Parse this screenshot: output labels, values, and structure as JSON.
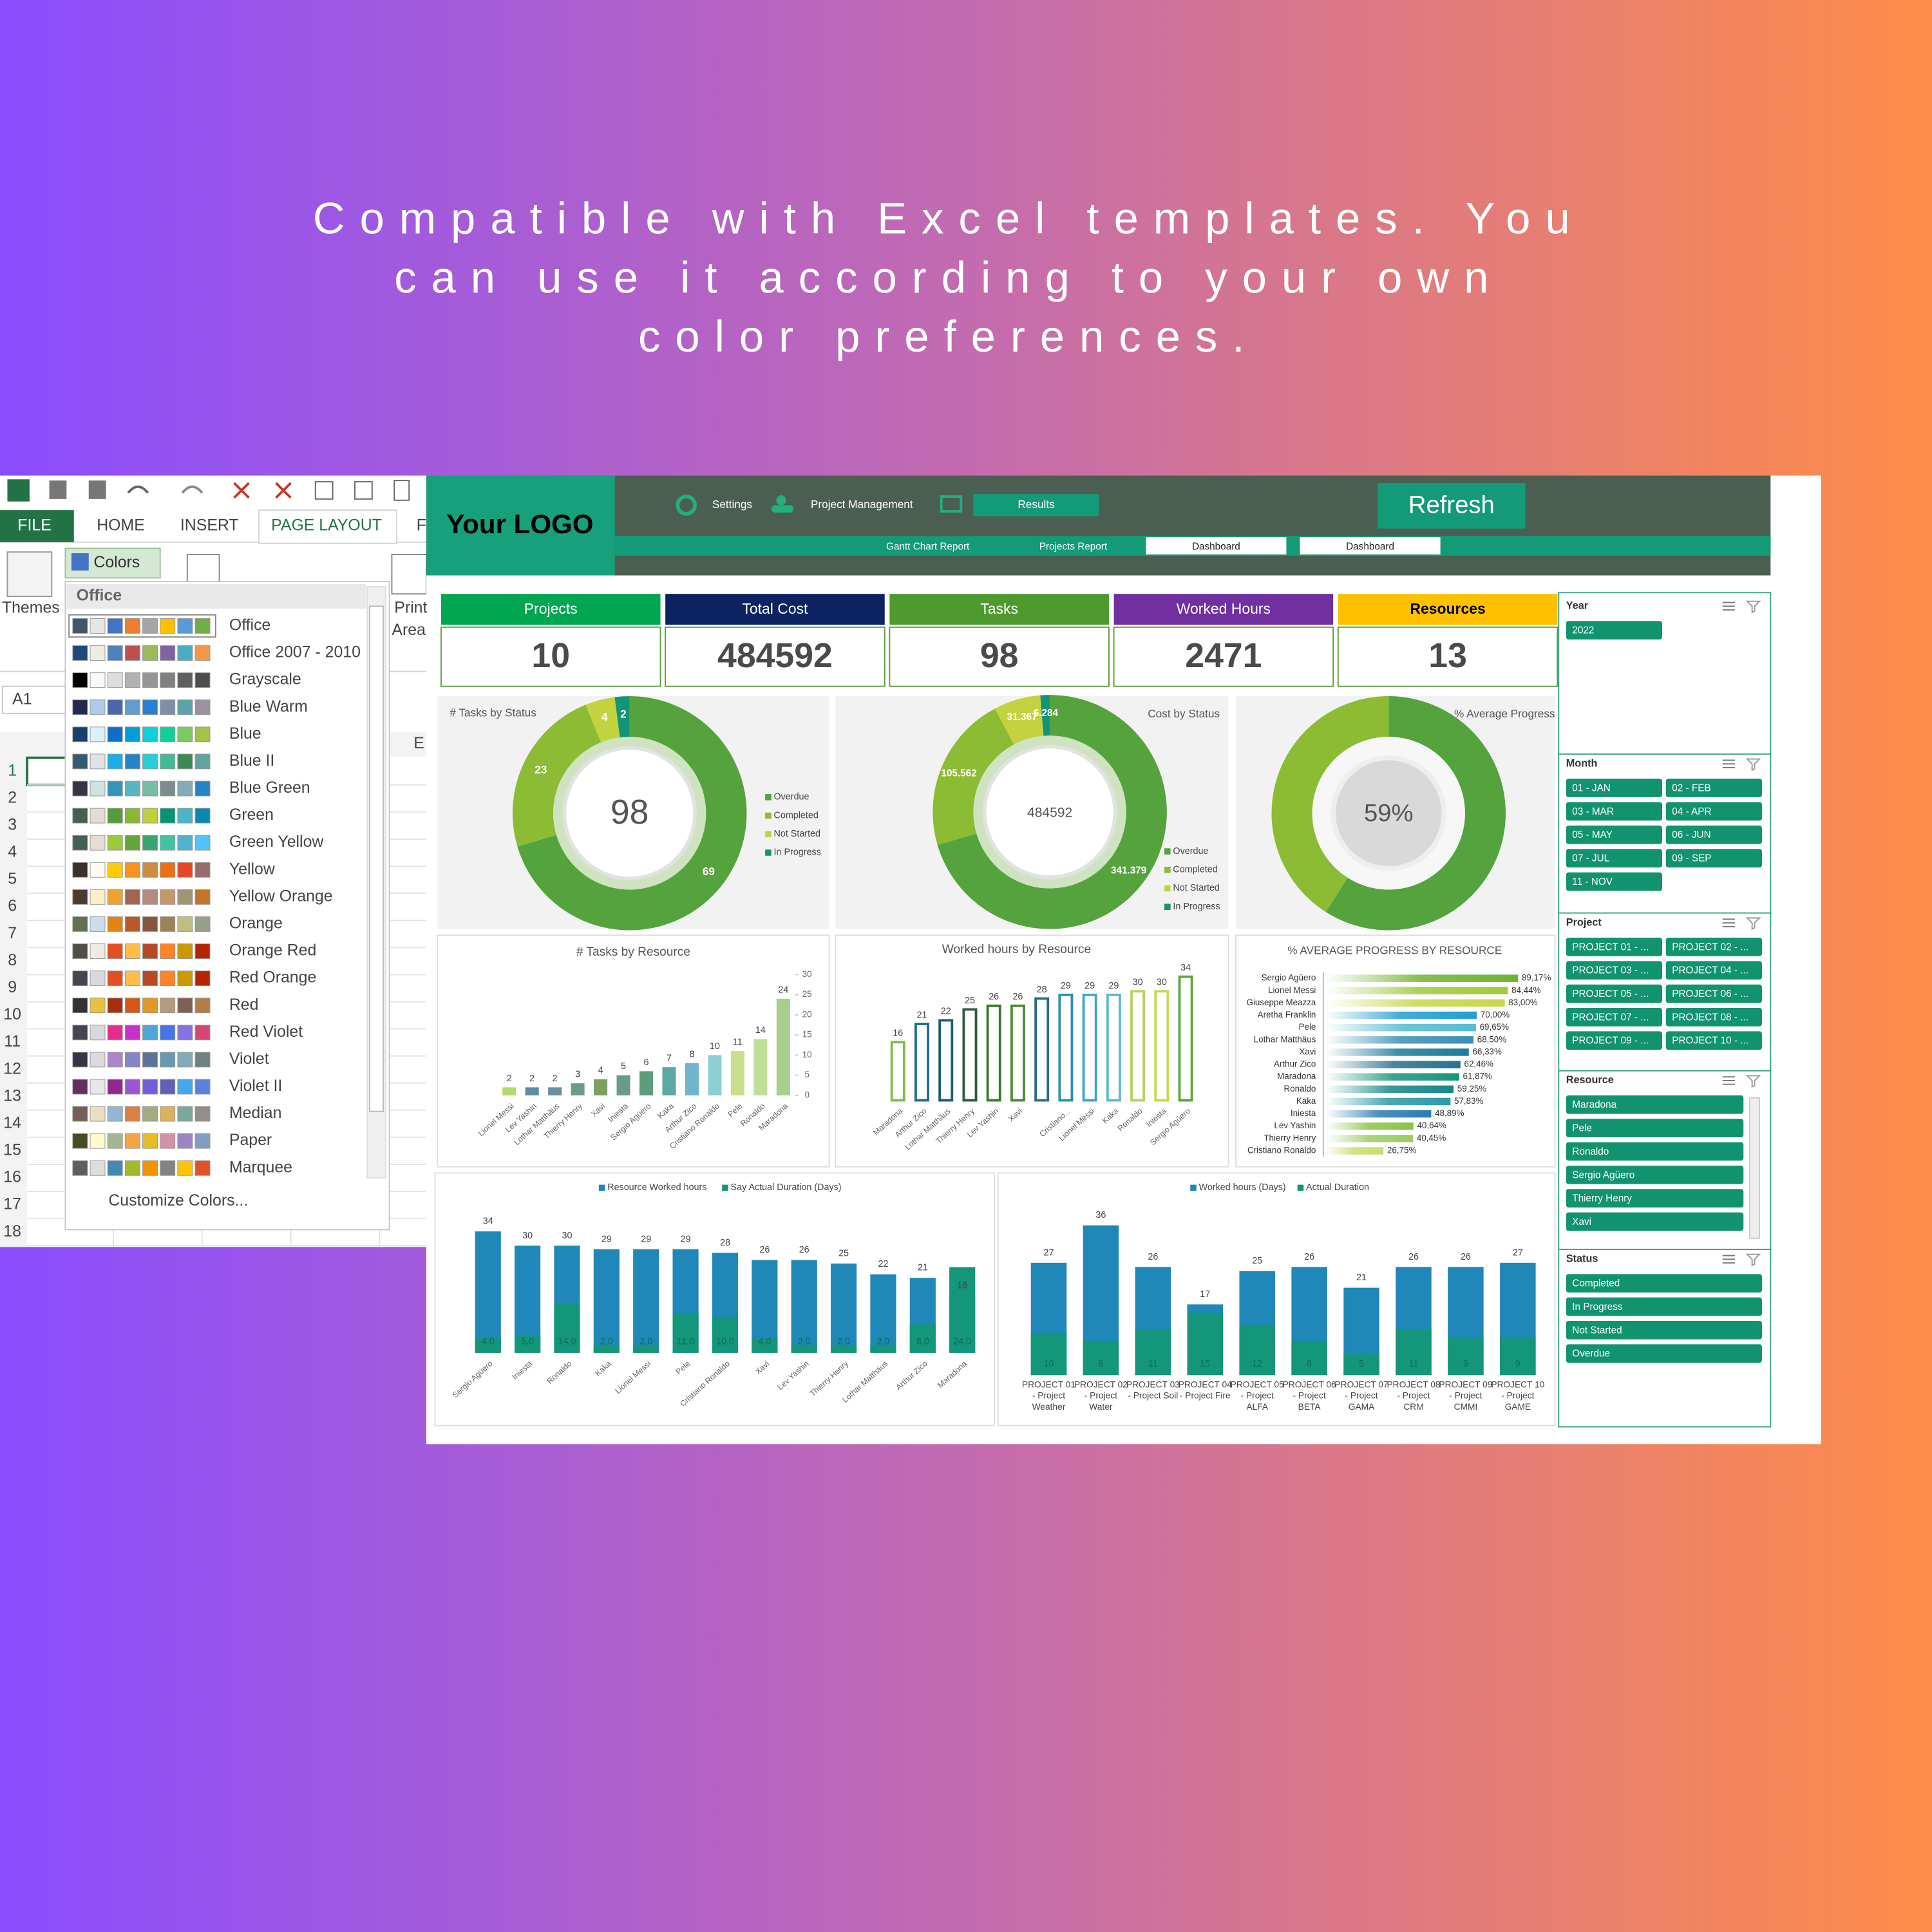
{
  "headline": {
    "lines": [
      "Compatible with Excel templates. You",
      "can use it according to your own",
      "color preferences."
    ]
  },
  "excel": {
    "tabs": [
      "FILE",
      "HOME",
      "INSERT",
      "PAGE LAYOUT",
      "F"
    ],
    "ribbon": {
      "themes": "Themes",
      "colors": "Colors",
      "print": "Print",
      "area": "Area"
    },
    "name_box": "A1",
    "column": "E",
    "rows": [
      1,
      2,
      3,
      4,
      5,
      6,
      7,
      8,
      9,
      10,
      11,
      12,
      13,
      14,
      15,
      16,
      17,
      18
    ],
    "menu": {
      "header": "Office",
      "customize": "Customize Colors...",
      "items": [
        {
          "name": "Office",
          "colors": [
            "#44546a",
            "#e7e6e6",
            "#4472c4",
            "#ed7d31",
            "#a5a5a5",
            "#ffc000",
            "#5b9bd5",
            "#70ad47"
          ]
        },
        {
          "name": "Office 2007 - 2010",
          "colors": [
            "#1f497d",
            "#eeece1",
            "#4f81bd",
            "#c0504d",
            "#9bbb59",
            "#8064a2",
            "#4bacc6",
            "#f79646"
          ]
        },
        {
          "name": "Grayscale",
          "colors": [
            "#000000",
            "#f8f8f8",
            "#dddddd",
            "#b2b2b2",
            "#969696",
            "#808080",
            "#5f5f5f",
            "#4d4d4d"
          ]
        },
        {
          "name": "Blue Warm",
          "colors": [
            "#242852",
            "#acccea",
            "#4a66ac",
            "#629dd1",
            "#297fd5",
            "#7f8fa9",
            "#5aa2ae",
            "#9d90a0"
          ]
        },
        {
          "name": "Blue",
          "colors": [
            "#17406d",
            "#dbefff",
            "#0f6fc6",
            "#009dd9",
            "#0bd0d9",
            "#10cf9b",
            "#7cca62",
            "#a5c249"
          ]
        },
        {
          "name": "Blue II",
          "colors": [
            "#335b74",
            "#dfe3e5",
            "#1cade4",
            "#2683c6",
            "#27ced7",
            "#42ba97",
            "#3e8853",
            "#62a39f"
          ]
        },
        {
          "name": "Blue Green",
          "colors": [
            "#373545",
            "#cee3e2",
            "#3494ba",
            "#58b6c0",
            "#75bda7",
            "#7a8c8e",
            "#84acb6",
            "#2683c6"
          ]
        },
        {
          "name": "Green",
          "colors": [
            "#455f51",
            "#e3ded1",
            "#549e39",
            "#8ab833",
            "#c0cf3a",
            "#029676",
            "#4ab5c4",
            "#0989b1"
          ]
        },
        {
          "name": "Green Yellow",
          "colors": [
            "#455f51",
            "#e3ded1",
            "#99cb38",
            "#63a537",
            "#37a76f",
            "#44c1a3",
            "#4eb3cf",
            "#51c3f9"
          ]
        },
        {
          "name": "Yellow",
          "colors": [
            "#39302a",
            "#fffbf2",
            "#ffca08",
            "#f8931d",
            "#ce8d3e",
            "#ec7016",
            "#e64823",
            "#9c6a6a"
          ]
        },
        {
          "name": "Yellow Orange",
          "colors": [
            "#4e3b30",
            "#fbeec9",
            "#f0a22e",
            "#a5644e",
            "#b58b80",
            "#c3986d",
            "#a19574",
            "#c17529"
          ]
        },
        {
          "name": "Orange",
          "colors": [
            "#637052",
            "#ccddea",
            "#e48312",
            "#bd582c",
            "#865640",
            "#9b8357",
            "#c2bc80",
            "#94a088"
          ]
        },
        {
          "name": "Orange Red",
          "colors": [
            "#505046",
            "#eeece1",
            "#e84c22",
            "#ffbd47",
            "#b64926",
            "#ff8427",
            "#cc9900",
            "#b22600"
          ]
        },
        {
          "name": "Red Orange",
          "colors": [
            "#454551",
            "#d8d9dc",
            "#e84c22",
            "#ffbd47",
            "#b64926",
            "#ff8427",
            "#cc9900",
            "#b22600"
          ]
        },
        {
          "name": "Red",
          "colors": [
            "#323232",
            "#e5c243",
            "#a5300f",
            "#d55816",
            "#e19825",
            "#b19c7d",
            "#7f5f52",
            "#b27d49"
          ]
        },
        {
          "name": "Red Violet",
          "colors": [
            "#454551",
            "#d8d9dc",
            "#e32d91",
            "#c830cc",
            "#4ea6dc",
            "#4775e7",
            "#8971e1",
            "#d54773"
          ]
        },
        {
          "name": "Violet",
          "colors": [
            "#373545",
            "#dcd8dc",
            "#ad84c6",
            "#8784c7",
            "#5d739a",
            "#6997af",
            "#84acb6",
            "#6f8183"
          ]
        },
        {
          "name": "Violet II",
          "colors": [
            "#632e62",
            "#eae5eb",
            "#92278f",
            "#9b57d3",
            "#755dd9",
            "#665eb8",
            "#45a5ed",
            "#5982db"
          ]
        },
        {
          "name": "Median",
          "colors": [
            "#775f55",
            "#ebddc3",
            "#94b6d2",
            "#dd8047",
            "#a5ab81",
            "#d8b25c",
            "#7ba79d",
            "#968c8c"
          ]
        },
        {
          "name": "Paper",
          "colors": [
            "#444d26",
            "#fefac9",
            "#a5b592",
            "#f3a447",
            "#e7bc29",
            "#d092a7",
            "#9c85c0",
            "#809ec2"
          ]
        },
        {
          "name": "Marquee",
          "colors": [
            "#5e5e5e",
            "#ddddde",
            "#418ab3",
            "#a6b727",
            "#f69200",
            "#838383",
            "#fec306",
            "#df5327"
          ]
        }
      ]
    }
  },
  "dashboard": {
    "logo": "Your LOGO",
    "nav": [
      "Settings",
      "Project Management",
      "Results"
    ],
    "refresh": "Refresh",
    "subnav": [
      "Gantt Chart Report",
      "Projects Report",
      "Dashboard",
      "Dashboard"
    ],
    "kpis": [
      {
        "label": "Projects",
        "value": 10,
        "color": "#00a650",
        "label_color": "#ffffff"
      },
      {
        "label": "Total Cost",
        "value": 484592,
        "color": "#0d2260",
        "label_color": "#ffffff"
      },
      {
        "label": "Tasks",
        "value": 98,
        "color": "#4e9a2f",
        "label_color": "#ffffff"
      },
      {
        "label": "Worked Hours",
        "value": 2471,
        "color": "#7030a0",
        "label_color": "#ffffff"
      },
      {
        "label": "Resources",
        "value": 13,
        "color": "#ffc000",
        "label_color": "#000000"
      }
    ],
    "slicers": [
      {
        "title": "Year",
        "items": [
          "2022"
        ]
      },
      {
        "title": "Month",
        "items": [
          "01 - JAN",
          "02 - FEB",
          "03 - MAR",
          "04 - APR",
          "05 - MAY",
          "06 - JUN",
          "07 - JUL",
          "09 - SEP",
          "11 - NOV"
        ]
      },
      {
        "title": "Project",
        "items": [
          "PROJECT 01 - ...",
          "PROJECT 02 - ...",
          "PROJECT 03 - ...",
          "PROJECT 04 - ...",
          "PROJECT 05 - ...",
          "PROJECT 06 - ...",
          "PROJECT 07 - ...",
          "PROJECT 08 - ...",
          "PROJECT 09 - ...",
          "PROJECT 10 - ..."
        ]
      },
      {
        "title": "Resource",
        "items": [
          "Maradona",
          "Pele",
          "Ronaldo",
          "Sergio Agüero",
          "Thierry Henry",
          "Xavi"
        ]
      },
      {
        "title": "Status",
        "items": [
          "Completed",
          "In Progress",
          "Not Started",
          "Overdue"
        ]
      }
    ]
  },
  "chart_data": [
    {
      "type": "donut",
      "title": "# Tasks by Status",
      "categories": [
        "Overdue",
        "Completed",
        "Not Started",
        "In Progress"
      ],
      "values": [
        69,
        23,
        4,
        2
      ],
      "colors": [
        "#54a33c",
        "#8cbb34",
        "#c3d33f",
        "#119477"
      ],
      "center_value": 98
    },
    {
      "type": "donut",
      "title": "Cost by Status",
      "categories": [
        "Overdue",
        "Completed",
        "Not Started",
        "In Progress"
      ],
      "values": [
        341379,
        105562,
        31367,
        6284
      ],
      "value_labels": [
        "341.379",
        "105.562",
        "31.367",
        "6.284"
      ],
      "colors": [
        "#54a33c",
        "#8cbb34",
        "#c3d33f",
        "#119477"
      ],
      "center_value": 484592
    },
    {
      "type": "donut",
      "title": "% Average Progress",
      "values": [
        59,
        41
      ],
      "colors": [
        "#54a33c",
        "#8cbb34"
      ],
      "center_label": "59%"
    },
    {
      "type": "bar",
      "title": "# Tasks by Resource",
      "categories": [
        "Lionel Messi",
        "Lev Yashin",
        "Lothar Matthäus",
        "Thierry Henry",
        "Xavi",
        "Iniesta",
        "Sergio Agüero",
        "Kaka",
        "Arthur Zico",
        "Cristiano Ronaldo",
        "Pele",
        "Ronaldo",
        "Maradona"
      ],
      "values": [
        2,
        2,
        2,
        3,
        4,
        5,
        6,
        7,
        8,
        10,
        11,
        14,
        24
      ],
      "colors": [
        "#b7d86b",
        "#5f8aa5",
        "#6b8f9e",
        "#6f9a86",
        "#7c9f63",
        "#6b9a8c",
        "#5c9d7b",
        "#5ea8a2",
        "#6db6cb",
        "#8ccfd2",
        "#c9df8c",
        "#bfe09a",
        "#a6cf8b"
      ],
      "ylim": [
        0,
        30
      ],
      "yticks": [
        0,
        5,
        10,
        15,
        20,
        25,
        30
      ]
    },
    {
      "type": "bar",
      "title": "Worked hours by Resource",
      "outline": true,
      "categories": [
        "Maradona",
        "Arthur Zico",
        "Lothar Matthäus",
        "Thierry Henry",
        "Lev Yashin",
        "Xavi",
        null,
        "Cristiano...",
        "Lionel Messi",
        "Kaka",
        "Ronaldo",
        "Iniesta",
        "Sergio Agüero"
      ],
      "values": [
        16,
        21,
        22,
        25,
        26,
        26,
        28,
        29,
        29,
        29,
        30,
        30,
        34
      ],
      "colors": [
        "#7cbf4a",
        "#1d6e8a",
        "#1a5e74",
        "#2e5b3e",
        "#3a7a2e",
        "#4f8a2e",
        "#2a6f7f",
        "#2b8fb5",
        "#3fa6c8",
        "#5bb8d2",
        "#b6d35a",
        "#c6d94a",
        "#5aa83a"
      ],
      "ylim": [
        0,
        40
      ]
    },
    {
      "type": "hbar",
      "title": "% AVERAGE PROGRESS BY RESOURCE",
      "categories": [
        "Sergio Agüero",
        "Lionel Messi",
        "Giuseppe Meazza",
        "Aretha Franklin",
        "Pele",
        "Lothar Matthäus",
        "Xavi",
        "Arthur Zico",
        "Maradona",
        "Ronaldo",
        "Kaka",
        "Iniesta",
        "Lev Yashin",
        "Thierry Henry",
        "Cristiano Ronaldo"
      ],
      "values": [
        89.17,
        84.44,
        83.0,
        70.0,
        69.65,
        68.5,
        66.33,
        62.46,
        61.87,
        59.25,
        57.83,
        48.89,
        40.64,
        40.45,
        26.75
      ],
      "value_labels": [
        "89,17%",
        "84,44%",
        "83,00%",
        "70,00%",
        "69,65%",
        "68,50%",
        "66,33%",
        "62,46%",
        "61,87%",
        "59,25%",
        "57,83%",
        "48,89%",
        "40,64%",
        "40,45%",
        "26,75%"
      ],
      "colors": [
        "#6fb232",
        "#9ccb3b",
        "#c5d84a",
        "#1f9fd0",
        "#55bcd0",
        "#3a8fb5",
        "#1f7a9a",
        "#2c6f8c",
        "#17957a",
        "#17878a",
        "#2a9aa8",
        "#2b7cb8",
        "#8bc34a",
        "#9ccc65",
        "#c8dd6a"
      ],
      "xlim": [
        0,
        100
      ]
    },
    {
      "type": "overlap_bar",
      "categories": [
        "Sergio Agüero",
        "Iniesta",
        "Ronaldo",
        "Kaka",
        "Lionel Messi",
        "Pele",
        "Cristiano Ronaldo",
        "Xavi",
        "Lev Yashin",
        "Thierry Henry",
        "Lothar Matthäus",
        "Arthur Zico",
        "Maradona"
      ],
      "series": [
        {
          "name": "Resource Worked hours",
          "color": "#1f88b8",
          "values": [
            34,
            30,
            30,
            29,
            29,
            29,
            28,
            26,
            26,
            25,
            22,
            21,
            16
          ]
        },
        {
          "name": "Say Actual Duration (Days)",
          "color": "#14967a",
          "values": [
            4,
            5,
            14,
            2,
            2,
            11,
            10,
            4,
            2,
            2,
            2,
            8,
            24
          ],
          "value_labels": [
            "4,0",
            "5,0",
            "14,0",
            "2,0",
            "2,0",
            "11,0",
            "10,0",
            "4,0",
            "2,0",
            "2,0",
            "2,0",
            "8,0",
            "24,0"
          ]
        }
      ],
      "ylim": [
        0,
        40
      ]
    },
    {
      "type": "overlap_bar",
      "categories": [
        "PROJECT 01 - Project Weather",
        "PROJECT 02 - Project Water",
        "PROJECT 03 - Project Soil",
        "PROJECT 04 - Project Fire",
        "PROJECT 05 - Project ALFA",
        "PROJECT 06 - Project BETA",
        "PROJECT 07 - Project GAMA",
        "PROJECT 08 - Project CRM",
        "PROJECT 09 - Project CMMI",
        "PROJECT 10 - Project GAME"
      ],
      "series": [
        {
          "name": "Worked hours (Days)",
          "color": "#1f88b8",
          "values": [
            27,
            36,
            26,
            17,
            25,
            26,
            21,
            26,
            26,
            27
          ]
        },
        {
          "name": "Actual Duration",
          "color": "#14967a",
          "values": [
            10,
            8,
            11,
            15,
            12,
            8,
            5,
            11,
            9,
            9
          ]
        }
      ],
      "ylim": [
        0,
        40
      ]
    }
  ]
}
